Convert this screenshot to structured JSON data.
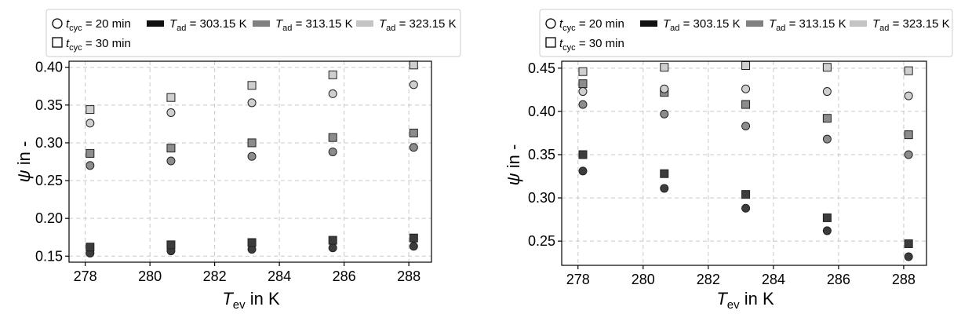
{
  "legend": {
    "cyc20": {
      "var": "t",
      "sub": "cyc",
      "rest": " = 20 min"
    },
    "cyc30": {
      "var": "t",
      "sub": "cyc",
      "rest": " = 30 min"
    },
    "t303": {
      "var": "T",
      "sub": "ad",
      "rest": " = 303.15 K"
    },
    "t313": {
      "var": "T",
      "sub": "ad",
      "rest": " = 313.15 K"
    },
    "t323": {
      "var": "T",
      "sub": "ad",
      "rest": " = 323.15 K"
    }
  },
  "axis": {
    "x_var": "T",
    "x_sub": "ev",
    "x_rest": " in K",
    "y_var": "ψ",
    "y_rest": " in -"
  },
  "colors": {
    "t303": "#3c3c3c",
    "t313": "#8c8c8c",
    "t323": "#cfcfcf",
    "legend_t303": "#111111",
    "legend_t313": "#808080",
    "legend_t323": "#c4c4c4"
  },
  "chart_data": [
    {
      "type": "scatter",
      "grid": true,
      "legend_position": "top-left, above plot",
      "xlim": [
        277.5,
        288.7
      ],
      "ylim": [
        0.142,
        0.408
      ],
      "xticks": [
        278,
        280,
        282,
        284,
        286,
        288
      ],
      "yticks": [
        0.15,
        0.2,
        0.25,
        0.3,
        0.35,
        0.4
      ],
      "ytick_labels": [
        "0.15",
        "0.20",
        "0.25",
        "0.30",
        "0.35",
        "0.40"
      ],
      "x": [
        278.15,
        280.65,
        283.15,
        285.65,
        288.15
      ],
      "series": [
        {
          "name": "T_ad = 303.15 K, t_cyc = 20 min",
          "group": "t303",
          "marker": "circle",
          "values": [
            0.154,
            0.157,
            0.159,
            0.161,
            0.163
          ]
        },
        {
          "name": "T_ad = 303.15 K, t_cyc = 30 min",
          "group": "t303",
          "marker": "square",
          "values": [
            0.162,
            0.165,
            0.168,
            0.171,
            0.174
          ]
        },
        {
          "name": "T_ad = 313.15 K, t_cyc = 20 min",
          "group": "t313",
          "marker": "circle",
          "values": [
            0.27,
            0.276,
            0.282,
            0.288,
            0.294
          ]
        },
        {
          "name": "T_ad = 313.15 K, t_cyc = 30 min",
          "group": "t313",
          "marker": "square",
          "values": [
            0.286,
            0.293,
            0.3,
            0.307,
            0.313
          ]
        },
        {
          "name": "T_ad = 323.15 K, t_cyc = 20 min",
          "group": "t323",
          "marker": "circle",
          "values": [
            0.326,
            0.34,
            0.353,
            0.365,
            0.377
          ]
        },
        {
          "name": "T_ad = 323.15 K, t_cyc = 30 min",
          "group": "t323",
          "marker": "square",
          "values": [
            0.344,
            0.36,
            0.376,
            0.39,
            0.403
          ]
        }
      ]
    },
    {
      "type": "scatter",
      "grid": true,
      "legend_position": "top-left, above plot",
      "xlim": [
        277.5,
        288.7
      ],
      "ylim": [
        0.222,
        0.458
      ],
      "xticks": [
        278,
        280,
        282,
        284,
        286,
        288
      ],
      "yticks": [
        0.25,
        0.3,
        0.35,
        0.4,
        0.45
      ],
      "ytick_labels": [
        "0.25",
        "0.30",
        "0.35",
        "0.40",
        "0.45"
      ],
      "x": [
        278.15,
        280.65,
        283.15,
        285.65,
        288.15
      ],
      "series": [
        {
          "name": "T_ad = 303.15 K, t_cyc = 20 min",
          "group": "t303",
          "marker": "circle",
          "values": [
            0.331,
            0.311,
            0.288,
            0.262,
            0.232
          ]
        },
        {
          "name": "T_ad = 303.15 K, t_cyc = 30 min",
          "group": "t303",
          "marker": "square",
          "values": [
            0.35,
            0.328,
            0.304,
            0.277,
            0.247
          ]
        },
        {
          "name": "T_ad = 313.15 K, t_cyc = 20 min",
          "group": "t313",
          "marker": "circle",
          "values": [
            0.408,
            0.397,
            0.383,
            0.368,
            0.35
          ]
        },
        {
          "name": "T_ad = 313.15 K, t_cyc = 30 min",
          "group": "t313",
          "marker": "square",
          "values": [
            0.432,
            0.422,
            0.408,
            0.392,
            0.373
          ]
        },
        {
          "name": "T_ad = 323.15 K, t_cyc = 20 min",
          "group": "t323",
          "marker": "circle",
          "values": [
            0.423,
            0.426,
            0.426,
            0.423,
            0.418
          ]
        },
        {
          "name": "T_ad = 323.15 K, t_cyc = 30 min",
          "group": "t323",
          "marker": "square",
          "values": [
            0.446,
            0.451,
            0.453,
            0.451,
            0.447
          ]
        }
      ]
    }
  ]
}
